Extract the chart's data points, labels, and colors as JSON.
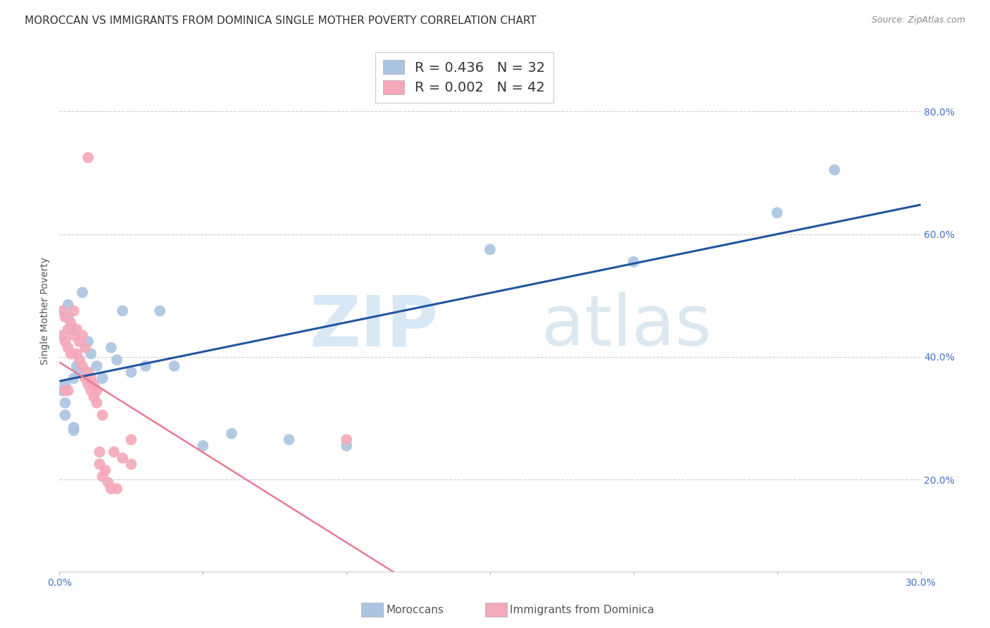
{
  "title": "MOROCCAN VS IMMIGRANTS FROM DOMINICA SINGLE MOTHER POVERTY CORRELATION CHART",
  "source": "Source: ZipAtlas.com",
  "ylabel": "Single Mother Poverty",
  "xlim": [
    0.0,
    0.3
  ],
  "ylim": [
    0.05,
    0.9
  ],
  "moroccan_color": "#aac4e2",
  "dominica_color": "#f4a8ba",
  "moroccan_line_color": "#2255a0",
  "dominica_line_color": "#e87a90",
  "legend_moroccan_R": "0.436",
  "legend_moroccan_N": "32",
  "legend_dominica_R": "0.002",
  "legend_dominica_N": "42",
  "grid_color": "#cccccc",
  "background_color": "#ffffff",
  "title_fontsize": 11,
  "tick_fontsize": 10,
  "moroccan_x": [
    0.001,
    0.002,
    0.002,
    0.003,
    0.004,
    0.005,
    0.005,
    0.006,
    0.007,
    0.008,
    0.01,
    0.011,
    0.013,
    0.015,
    0.018,
    0.02,
    0.022,
    0.025,
    0.03,
    0.035,
    0.04,
    0.05,
    0.06,
    0.08,
    0.1,
    0.15,
    0.2,
    0.25,
    0.27,
    0.002,
    0.003,
    0.005
  ],
  "moroccan_y": [
    0.345,
    0.355,
    0.325,
    0.485,
    0.445,
    0.365,
    0.28,
    0.385,
    0.375,
    0.505,
    0.425,
    0.405,
    0.385,
    0.365,
    0.415,
    0.395,
    0.475,
    0.375,
    0.385,
    0.475,
    0.385,
    0.255,
    0.275,
    0.265,
    0.255,
    0.575,
    0.555,
    0.635,
    0.705,
    0.305,
    0.465,
    0.285
  ],
  "dominica_x": [
    0.001,
    0.001,
    0.002,
    0.002,
    0.002,
    0.003,
    0.003,
    0.003,
    0.004,
    0.004,
    0.005,
    0.005,
    0.006,
    0.006,
    0.007,
    0.007,
    0.008,
    0.008,
    0.009,
    0.009,
    0.01,
    0.01,
    0.011,
    0.011,
    0.012,
    0.012,
    0.013,
    0.013,
    0.014,
    0.014,
    0.015,
    0.015,
    0.016,
    0.017,
    0.018,
    0.019,
    0.02,
    0.022,
    0.025,
    0.01,
    0.1,
    0.025
  ],
  "dominica_y": [
    0.475,
    0.435,
    0.465,
    0.425,
    0.345,
    0.445,
    0.415,
    0.345,
    0.455,
    0.405,
    0.475,
    0.435,
    0.445,
    0.405,
    0.425,
    0.395,
    0.385,
    0.435,
    0.415,
    0.365,
    0.375,
    0.355,
    0.345,
    0.365,
    0.335,
    0.355,
    0.325,
    0.345,
    0.225,
    0.245,
    0.305,
    0.205,
    0.215,
    0.195,
    0.185,
    0.245,
    0.185,
    0.235,
    0.225,
    0.725,
    0.265,
    0.265
  ]
}
